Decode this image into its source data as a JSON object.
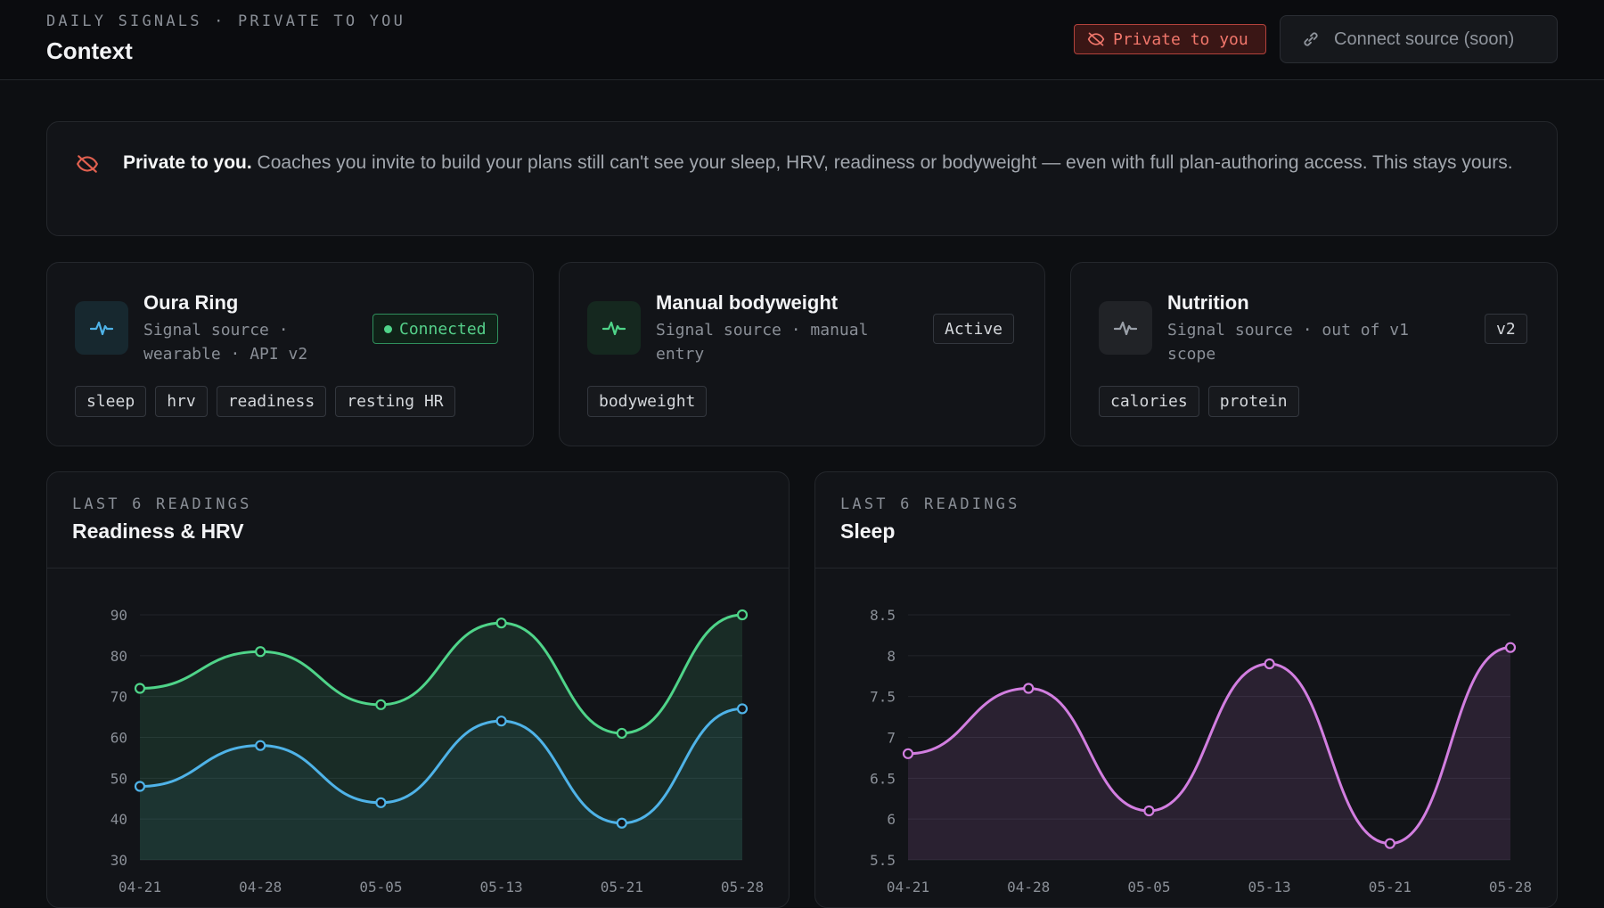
{
  "header": {
    "eyebrow": "DAILY SIGNALS · PRIVATE TO YOU",
    "title": "Context",
    "private_pill": "Private to you",
    "connect_button": "Connect source (soon)"
  },
  "banner": {
    "lead": "Private to you.",
    "text": "Coaches you invite to build your plans still can't see your sleep, HRV, readiness or bodyweight — even with full plan-authoring access. This stays yours."
  },
  "sources": [
    {
      "name": "Oura Ring",
      "subtitle": "Signal source · wearable · API v2",
      "status": "Connected",
      "tags": [
        "sleep",
        "hrv",
        "readiness",
        "resting HR"
      ],
      "icon": "pulse-icon",
      "icon_color": "#4fb3e8"
    },
    {
      "name": "Manual bodyweight",
      "subtitle": "Signal source · manual entry",
      "status": "Active",
      "tags": [
        "bodyweight"
      ],
      "icon": "pulse-icon",
      "icon_color": "#4fd489"
    },
    {
      "name": "Nutrition",
      "subtitle": "Signal source · out of v1 scope",
      "status": "v2",
      "tags": [
        "calories",
        "protein"
      ],
      "icon": "pulse-icon",
      "icon_color": "#9aa0a8"
    }
  ],
  "charts": {
    "readiness": {
      "eyebrow": "LAST 6 READINGS",
      "title": "Readiness & HRV"
    },
    "sleep": {
      "eyebrow": "LAST 6 READINGS",
      "title": "Sleep"
    }
  },
  "chart_data": [
    {
      "type": "area",
      "title": "Readiness & HRV",
      "categories": [
        "04-21",
        "04-28",
        "05-05",
        "05-13",
        "05-21",
        "05-28"
      ],
      "series": [
        {
          "name": "",
          "values": [
            72,
            81,
            68,
            88,
            61,
            90
          ],
          "color": "#4fd489"
        },
        {
          "name": "",
          "values": [
            48,
            58,
            44,
            64,
            39,
            67
          ],
          "color": "#4fb3e8"
        }
      ],
      "ylim": [
        30,
        90
      ],
      "yticks": [
        90,
        80,
        70,
        60,
        50,
        40,
        30
      ],
      "grid": true
    },
    {
      "type": "area",
      "title": "Sleep",
      "categories": [
        "04-21",
        "04-28",
        "05-05",
        "05-13",
        "05-21",
        "05-28"
      ],
      "series": [
        {
          "name": "",
          "values": [
            6.8,
            7.6,
            6.1,
            7.9,
            5.7,
            8.1
          ],
          "color": "#d27ee0"
        }
      ],
      "ylim": [
        5.5,
        8.5
      ],
      "yticks": [
        8.5,
        8,
        7.5,
        7,
        6.5,
        6,
        5.5
      ],
      "grid": true
    }
  ]
}
